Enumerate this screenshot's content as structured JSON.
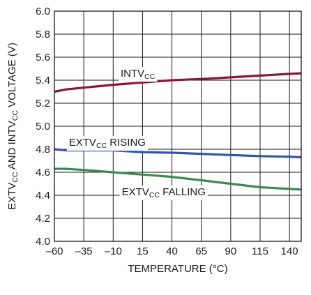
{
  "chart_data": {
    "type": "line",
    "title": "",
    "xlabel": "TEMPERATURE (°C)",
    "ylabel": {
      "parts": [
        {
          "text": "EXTV",
          "sub": false
        },
        {
          "text": "CC",
          "sub": true
        },
        {
          "text": " AND INTV",
          "sub": false
        },
        {
          "text": "CC",
          "sub": true
        },
        {
          "text": " VOLTAGE (V)",
          "sub": false
        }
      ]
    },
    "xlim": [
      -60,
      150
    ],
    "ylim": [
      4.0,
      6.0
    ],
    "xticks": [
      -60,
      -35,
      -10,
      15,
      40,
      65,
      90,
      115,
      140
    ],
    "xtick_labels": [
      "–60",
      "–35",
      "–10",
      "15",
      "40",
      "65",
      "90",
      "115",
      "140"
    ],
    "yticks": [
      4.0,
      4.2,
      4.4,
      4.6,
      4.8,
      5.0,
      5.2,
      5.4,
      5.6,
      5.8,
      6.0
    ],
    "ytick_labels": [
      "4.0",
      "4.2",
      "4.4",
      "4.6",
      "4.8",
      "5.0",
      "5.2",
      "5.4",
      "5.6",
      "5.8",
      "6.0"
    ],
    "grid": true,
    "series": [
      {
        "name": "INTVCC",
        "label_parts": [
          {
            "text": "INTV",
            "sub": false
          },
          {
            "text": "CC",
            "sub": true
          }
        ],
        "label_at": [
          11,
          5.43
        ],
        "color": "#8b1538",
        "x": [
          -60,
          -50,
          -35,
          -10,
          15,
          40,
          65,
          90,
          115,
          140,
          150
        ],
        "y": [
          5.3,
          5.32,
          5.335,
          5.36,
          5.38,
          5.4,
          5.41,
          5.425,
          5.44,
          5.455,
          5.46
        ]
      },
      {
        "name": "EXTVCC RISING",
        "label_parts": [
          {
            "text": "EXTV",
            "sub": false
          },
          {
            "text": "CC",
            "sub": true
          },
          {
            "text": " RISING",
            "sub": false
          }
        ],
        "label_at": [
          -15,
          4.83
        ],
        "color": "#3355a8",
        "x": [
          -60,
          -50,
          -35,
          -10,
          15,
          40,
          65,
          90,
          115,
          140,
          150
        ],
        "y": [
          4.8,
          4.79,
          4.79,
          4.79,
          4.775,
          4.77,
          4.76,
          4.75,
          4.74,
          4.735,
          4.73
        ]
      },
      {
        "name": "EXTVCC FALLING",
        "label_parts": [
          {
            "text": "EXTV",
            "sub": false
          },
          {
            "text": "CC",
            "sub": true
          },
          {
            "text": " FALLING",
            "sub": false
          }
        ],
        "label_at": [
          33,
          4.4
        ],
        "color": "#3c8a4e",
        "x": [
          -60,
          -50,
          -35,
          -10,
          15,
          40,
          65,
          90,
          115,
          140,
          150
        ],
        "y": [
          4.63,
          4.63,
          4.62,
          4.6,
          4.58,
          4.56,
          4.53,
          4.5,
          4.47,
          4.455,
          4.45
        ]
      }
    ]
  }
}
